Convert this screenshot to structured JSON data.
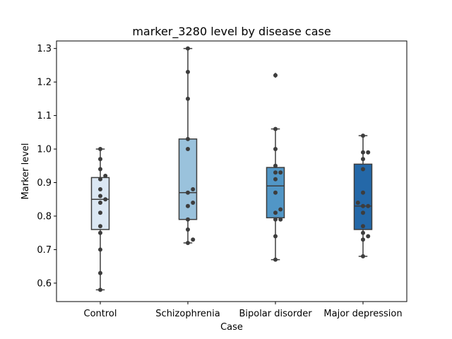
{
  "chart_data": {
    "type": "box",
    "title": "marker_3280 level by disease case",
    "xlabel": "Case",
    "ylabel": "Marker level",
    "ylim": [
      0.545,
      1.3225
    ],
    "yticks": [
      "0.6",
      "0.7",
      "0.8",
      "0.9",
      "1.0",
      "1.1",
      "1.2",
      "1.3"
    ],
    "grid": false,
    "categories": [
      "Control",
      "Schizophrenia",
      "Bipolar disorder",
      "Major depression"
    ],
    "colors": [
      "#dbe7f3",
      "#9ac2dc",
      "#5196c6",
      "#2468a8"
    ],
    "boxes": [
      {
        "category": "Control",
        "whisker_low": 0.58,
        "q1": 0.76,
        "median": 0.85,
        "q3": 0.915,
        "whisker_high": 1.0,
        "outliers": []
      },
      {
        "category": "Schizophrenia",
        "whisker_low": 0.72,
        "q1": 0.79,
        "median": 0.87,
        "q3": 1.03,
        "whisker_high": 1.3,
        "outliers": []
      },
      {
        "category": "Bipolar disorder",
        "whisker_low": 0.67,
        "q1": 0.795,
        "median": 0.89,
        "q3": 0.945,
        "whisker_high": 1.06,
        "outliers": [
          1.22
        ]
      },
      {
        "category": "Major depression",
        "whisker_low": 0.68,
        "q1": 0.76,
        "median": 0.83,
        "q3": 0.955,
        "whisker_high": 1.04,
        "outliers": []
      }
    ],
    "points": [
      [
        1.0,
        0.97,
        0.94,
        0.92,
        0.91,
        0.88,
        0.86,
        0.85,
        0.84,
        0.81,
        0.77,
        0.75,
        0.7,
        0.63,
        0.58
      ],
      [
        1.3,
        1.23,
        1.15,
        1.03,
        1.0,
        0.88,
        0.87,
        0.84,
        0.83,
        0.79,
        0.76,
        0.73,
        0.72
      ],
      [
        1.22,
        1.06,
        1.0,
        0.95,
        0.93,
        0.93,
        0.91,
        0.87,
        0.82,
        0.81,
        0.79,
        0.79,
        0.74,
        0.67
      ],
      [
        1.04,
        0.99,
        0.99,
        0.97,
        0.94,
        0.87,
        0.84,
        0.83,
        0.83,
        0.81,
        0.77,
        0.75,
        0.74,
        0.73,
        0.68
      ]
    ]
  }
}
